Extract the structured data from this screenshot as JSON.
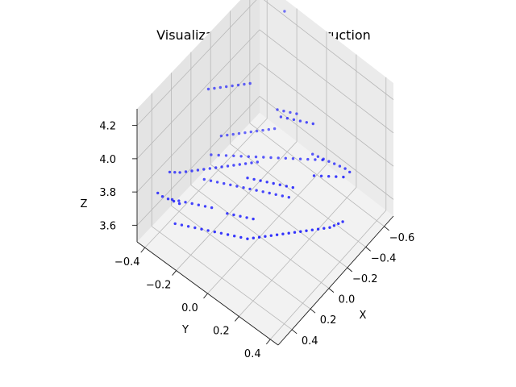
{
  "chart_data": {
    "type": "scatter",
    "projection": "3d",
    "title": "Visualization of 3D Recontruction",
    "xlabel": "X",
    "ylabel": "Y",
    "zlabel": "Z",
    "xlim": [
      -0.7,
      0.55
    ],
    "ylim": [
      -0.45,
      0.45
    ],
    "zlim": [
      3.5,
      4.3
    ],
    "xticks": [
      "−0.6",
      "−0.4",
      "−0.2",
      "0.0",
      "0.2",
      "0.4"
    ],
    "yticks": [
      "−0.4",
      "−0.2",
      "0.0",
      "0.2",
      "0.4"
    ],
    "zticks": [
      "3.6",
      "3.8",
      "4.0",
      "4.2"
    ],
    "grid": true,
    "point_color": "#0000ff",
    "series": [
      {
        "points": [
          [
            0.28,
            -0.41,
            3.78
          ],
          [
            0.26,
            -0.39,
            3.78
          ],
          [
            0.24,
            -0.37,
            3.78
          ],
          [
            0.21,
            -0.35,
            3.78
          ],
          [
            0.18,
            -0.33,
            3.78
          ],
          [
            0.15,
            -0.31,
            3.78
          ],
          [
            0.12,
            -0.29,
            3.78
          ],
          [
            0.09,
            -0.27,
            3.78
          ],
          [
            0.06,
            -0.25,
            3.78
          ],
          [
            0.03,
            -0.23,
            3.78
          ],
          [
            0.0,
            -0.21,
            3.78
          ],
          [
            -0.03,
            -0.19,
            3.78
          ],
          [
            -0.06,
            -0.17,
            3.78
          ],
          [
            -0.09,
            -0.15,
            3.78
          ],
          [
            -0.12,
            -0.13,
            3.78
          ],
          [
            -0.15,
            -0.11,
            3.78
          ],
          [
            0.4,
            -0.3,
            3.62
          ],
          [
            0.38,
            -0.27,
            3.62
          ],
          [
            0.36,
            -0.24,
            3.62
          ],
          [
            0.34,
            -0.21,
            3.62
          ],
          [
            0.32,
            -0.18,
            3.62
          ],
          [
            0.3,
            -0.15,
            3.62
          ],
          [
            0.28,
            -0.12,
            3.62
          ],
          [
            0.26,
            -0.09,
            3.62
          ],
          [
            0.24,
            -0.06,
            3.62
          ],
          [
            0.22,
            -0.03,
            3.62
          ],
          [
            0.2,
            0.0,
            3.62
          ],
          [
            0.18,
            0.03,
            3.62
          ],
          [
            0.15,
            0.05,
            3.62
          ],
          [
            0.12,
            0.07,
            3.62
          ],
          [
            0.09,
            0.09,
            3.62
          ],
          [
            0.06,
            0.11,
            3.62
          ],
          [
            0.03,
            0.13,
            3.62
          ],
          [
            0.0,
            0.15,
            3.62
          ],
          [
            -0.03,
            0.17,
            3.62
          ],
          [
            -0.06,
            0.19,
            3.62
          ],
          [
            -0.09,
            0.21,
            3.62
          ],
          [
            -0.12,
            0.23,
            3.62
          ],
          [
            -0.15,
            0.25,
            3.62
          ],
          [
            -0.18,
            0.27,
            3.62
          ],
          [
            -0.21,
            0.29,
            3.62
          ],
          [
            -0.24,
            0.31,
            3.62
          ],
          [
            -0.27,
            0.32,
            3.62
          ],
          [
            -0.3,
            0.33,
            3.62
          ],
          [
            -0.33,
            0.34,
            3.62
          ],
          [
            0.1,
            -0.3,
            3.7
          ],
          [
            0.08,
            -0.27,
            3.7
          ],
          [
            0.06,
            -0.24,
            3.7
          ],
          [
            0.04,
            -0.21,
            3.7
          ],
          [
            0.02,
            -0.18,
            3.7
          ],
          [
            0.0,
            -0.15,
            3.7
          ],
          [
            -0.02,
            -0.12,
            3.7
          ],
          [
            -0.04,
            -0.09,
            3.7
          ],
          [
            -0.06,
            -0.06,
            3.7
          ],
          [
            -0.08,
            -0.03,
            3.7
          ],
          [
            -0.1,
            0.0,
            3.7
          ],
          [
            -0.12,
            0.03,
            3.7
          ],
          [
            -0.14,
            0.06,
            3.7
          ],
          [
            -0.16,
            0.09,
            3.7
          ],
          [
            -0.05,
            -0.35,
            3.72
          ],
          [
            -0.08,
            -0.32,
            3.72
          ],
          [
            -0.11,
            -0.29,
            3.72
          ],
          [
            -0.14,
            -0.26,
            3.72
          ],
          [
            -0.17,
            -0.23,
            3.72
          ],
          [
            -0.2,
            -0.2,
            3.72
          ],
          [
            -0.23,
            -0.17,
            3.72
          ],
          [
            -0.26,
            -0.14,
            3.72
          ],
          [
            -0.29,
            -0.11,
            3.72
          ],
          [
            -0.32,
            -0.08,
            3.72
          ],
          [
            -0.35,
            -0.05,
            3.72
          ],
          [
            -0.38,
            -0.02,
            3.72
          ],
          [
            -0.41,
            0.01,
            3.72
          ],
          [
            -0.44,
            0.04,
            3.72
          ],
          [
            -0.47,
            0.07,
            3.72
          ],
          [
            -0.5,
            0.1,
            3.72
          ],
          [
            0.35,
            -0.35,
            3.7
          ],
          [
            0.33,
            -0.32,
            3.7
          ],
          [
            0.31,
            -0.29,
            3.7
          ],
          [
            0.29,
            -0.26,
            3.7
          ],
          [
            0.27,
            -0.23,
            3.7
          ],
          [
            0.25,
            -0.2,
            3.7
          ],
          [
            0.23,
            -0.17,
            3.7
          ],
          [
            0.45,
            -0.38,
            3.78
          ],
          [
            0.45,
            -0.35,
            3.78
          ],
          [
            0.44,
            -0.32,
            3.78
          ],
          [
            0.43,
            -0.29,
            3.78
          ],
          [
            0.42,
            -0.26,
            3.78
          ],
          [
            -0.2,
            -0.38,
            3.72
          ],
          [
            -0.23,
            -0.36,
            3.72
          ],
          [
            -0.26,
            -0.34,
            3.72
          ],
          [
            -0.29,
            -0.32,
            3.72
          ],
          [
            -0.32,
            -0.3,
            3.72
          ],
          [
            -0.35,
            -0.28,
            3.72
          ],
          [
            -0.38,
            -0.26,
            3.72
          ],
          [
            -0.41,
            -0.24,
            3.72
          ],
          [
            -0.44,
            -0.22,
            3.72
          ],
          [
            -0.47,
            -0.2,
            3.72
          ],
          [
            -0.55,
            0.25,
            3.72
          ],
          [
            -0.55,
            0.22,
            3.72
          ],
          [
            -0.54,
            0.19,
            3.72
          ],
          [
            -0.53,
            0.16,
            3.72
          ],
          [
            -0.52,
            0.13,
            3.72
          ],
          [
            -0.51,
            0.1,
            3.72
          ],
          [
            -0.5,
            0.07,
            3.72
          ],
          [
            -0.49,
            0.04,
            3.72
          ],
          [
            -0.1,
            -0.4,
            4.05
          ],
          [
            -0.13,
            -0.38,
            4.05
          ],
          [
            -0.16,
            -0.36,
            4.05
          ],
          [
            -0.19,
            -0.34,
            4.05
          ],
          [
            -0.22,
            -0.32,
            4.05
          ],
          [
            -0.25,
            -0.3,
            4.05
          ],
          [
            -0.28,
            -0.28,
            4.05
          ],
          [
            -0.31,
            -0.26,
            4.05
          ],
          [
            -0.3,
            -0.05,
            4.0
          ],
          [
            -0.32,
            -0.02,
            4.0
          ],
          [
            -0.34,
            0.01,
            4.0
          ],
          [
            -0.36,
            0.04,
            4.0
          ],
          [
            -0.38,
            0.07,
            4.0
          ],
          [
            -0.4,
            0.1,
            4.0
          ],
          [
            -0.65,
            -0.25,
            4.28
          ],
          [
            -0.25,
            0.2,
            3.85
          ],
          [
            -0.28,
            0.23,
            3.85
          ],
          [
            -0.31,
            0.26,
            3.85
          ],
          [
            -0.34,
            0.29,
            3.85
          ],
          [
            -0.37,
            0.32,
            3.85
          ],
          [
            0.05,
            -0.05,
            3.85
          ],
          [
            0.03,
            -0.02,
            3.85
          ],
          [
            0.01,
            0.01,
            3.85
          ],
          [
            -0.01,
            0.04,
            3.85
          ],
          [
            -0.03,
            0.07,
            3.85
          ],
          [
            -0.05,
            0.1,
            3.85
          ],
          [
            -0.07,
            0.13,
            3.85
          ],
          [
            -0.09,
            0.16,
            3.85
          ],
          [
            -0.42,
            -0.15,
            3.9
          ],
          [
            -0.44,
            -0.12,
            3.9
          ],
          [
            -0.46,
            -0.09,
            3.9
          ],
          [
            -0.48,
            -0.06,
            3.9
          ],
          [
            0.15,
            -0.12,
            3.65
          ],
          [
            0.13,
            -0.09,
            3.65
          ],
          [
            0.11,
            -0.06,
            3.65
          ],
          [
            0.09,
            -0.03,
            3.65
          ],
          [
            0.07,
            0.0,
            3.65
          ]
        ]
      }
    ]
  }
}
